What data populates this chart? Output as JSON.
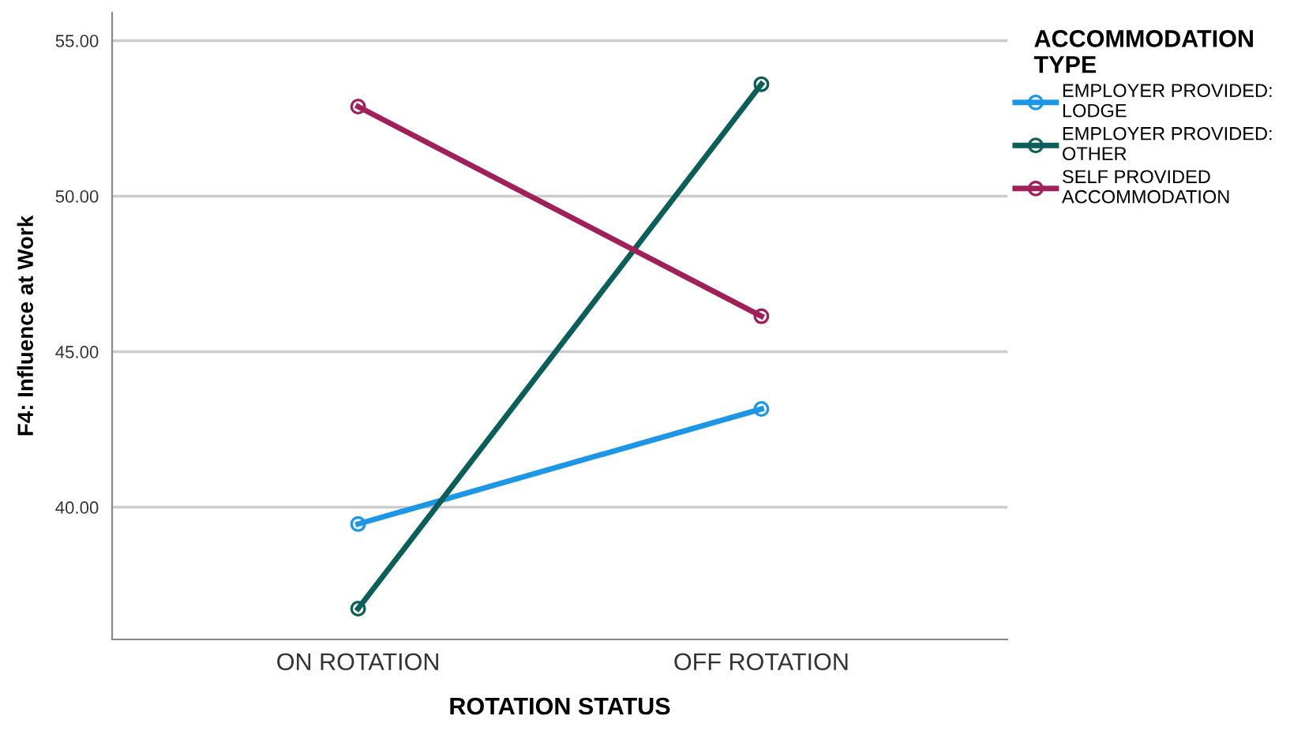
{
  "chart_data": {
    "type": "line",
    "xlabel": "ROTATION STATUS",
    "ylabel": "F4: Influence at Work",
    "legend_title": "ACCOMMODATION\nTYPE",
    "categories": [
      "ON ROTATION",
      "OFF ROTATION"
    ],
    "series": [
      {
        "name": "EMPLOYER PROVIDED:\nLODGE",
        "color": "#1e96e6",
        "values": [
          39.46,
          43.16
        ]
      },
      {
        "name": "EMPLOYER PROVIDED:\nOTHER",
        "color": "#0c5f58",
        "values": [
          36.74,
          53.6
        ]
      },
      {
        "name": "SELF PROVIDED\nACCOMMODATION",
        "color": "#a0205a",
        "values": [
          52.88,
          46.14
        ]
      }
    ],
    "ylim": [
      35.75,
      55.9
    ],
    "yticks": [
      {
        "value": 40,
        "label": "40.00"
      },
      {
        "value": 45,
        "label": "45.00"
      },
      {
        "value": 50,
        "label": "50.00"
      },
      {
        "value": 55,
        "label": "55.00"
      }
    ],
    "grid": "y",
    "legend": "top right",
    "marker": "circle",
    "line_style": "solid"
  }
}
